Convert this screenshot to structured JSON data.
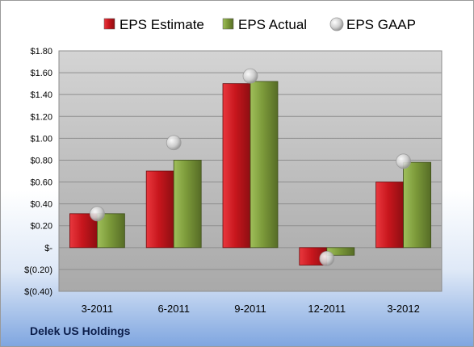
{
  "company": "Delek US Holdings",
  "chart_data": {
    "type": "bar",
    "categories": [
      "3-2011",
      "6-2011",
      "9-2011",
      "12-2011",
      "3-2012"
    ],
    "series": [
      {
        "name": "EPS Estimate",
        "kind": "bar",
        "color": "#c8161d",
        "values": [
          0.31,
          0.7,
          1.5,
          -0.16,
          0.6
        ]
      },
      {
        "name": "EPS Actual",
        "kind": "bar",
        "color": "#7c9a3a",
        "values": [
          0.31,
          0.8,
          1.52,
          -0.07,
          0.78
        ]
      },
      {
        "name": "EPS GAAP",
        "kind": "marker",
        "color": "#bfbfbf",
        "values": [
          0.31,
          0.96,
          1.57,
          -0.1,
          0.79
        ]
      }
    ],
    "ylim": [
      -0.4,
      1.8
    ],
    "yticks": [
      -0.4,
      -0.2,
      0,
      0.2,
      0.4,
      0.6,
      0.8,
      1.0,
      1.2,
      1.4,
      1.6,
      1.8
    ],
    "ytick_labels": [
      "$(0.40)",
      "$(0.20)",
      "$-",
      "$0.20",
      "$0.40",
      "$0.60",
      "$0.80",
      "$1.00",
      "$1.20",
      "$1.40",
      "$1.60",
      "$1.80"
    ],
    "legend_position": "top-center",
    "grid": true,
    "plot_background": "#c0c0c0"
  }
}
